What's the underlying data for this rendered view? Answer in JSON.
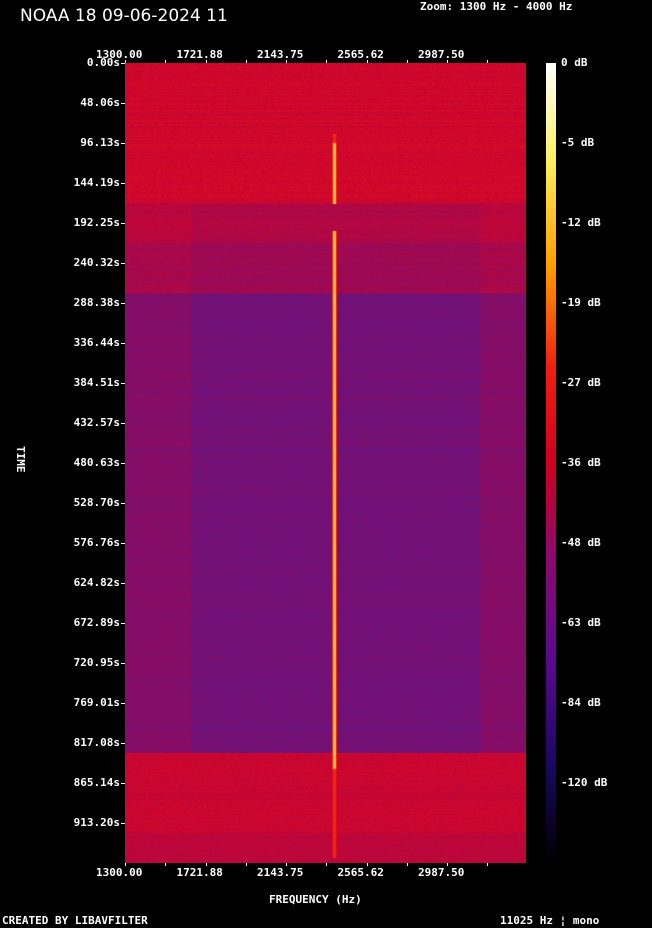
{
  "title": "NOAA 18 09-06-2024 11",
  "zoom_label": "Zoom: 1300 Hz - 4000 Hz",
  "footer_left": "CREATED BY LIBAVFILTER",
  "footer_right": "11025 Hz ¦ mono",
  "chart_data": {
    "type": "heatmap",
    "title": "NOAA 18 09-06-2024 11",
    "xlabel": "FREQUENCY (Hz)",
    "ylabel": "TIME",
    "x_tick_labels": [
      "1300.00",
      "1721.88",
      "2143.75",
      "2565.62",
      "2987.50"
    ],
    "y_tick_labels": [
      "0.00s",
      "48.06s",
      "96.13s",
      "144.19s",
      "192.25s",
      "240.32s",
      "288.38s",
      "336.44s",
      "384.51s",
      "432.57s",
      "480.63s",
      "528.70s",
      "576.76s",
      "624.82s",
      "672.89s",
      "720.95s",
      "769.01s",
      "817.08s",
      "865.14s",
      "913.20s"
    ],
    "colorbar_labels": [
      "0 dB",
      "-5 dB",
      "-12 dB",
      "-19 dB",
      "-27 dB",
      "-36 dB",
      "-48 dB",
      "-63 dB",
      "-84 dB",
      "-120 dB"
    ],
    "colormap": [
      "#000000",
      "#1a0a5a",
      "#6a0a80",
      "#c0103a",
      "#e81010",
      "#ff8000",
      "#ffd020",
      "#ffffff"
    ],
    "signal_frequency_hz": 2400,
    "zoom_range_hz": [
      1300,
      4000
    ]
  }
}
